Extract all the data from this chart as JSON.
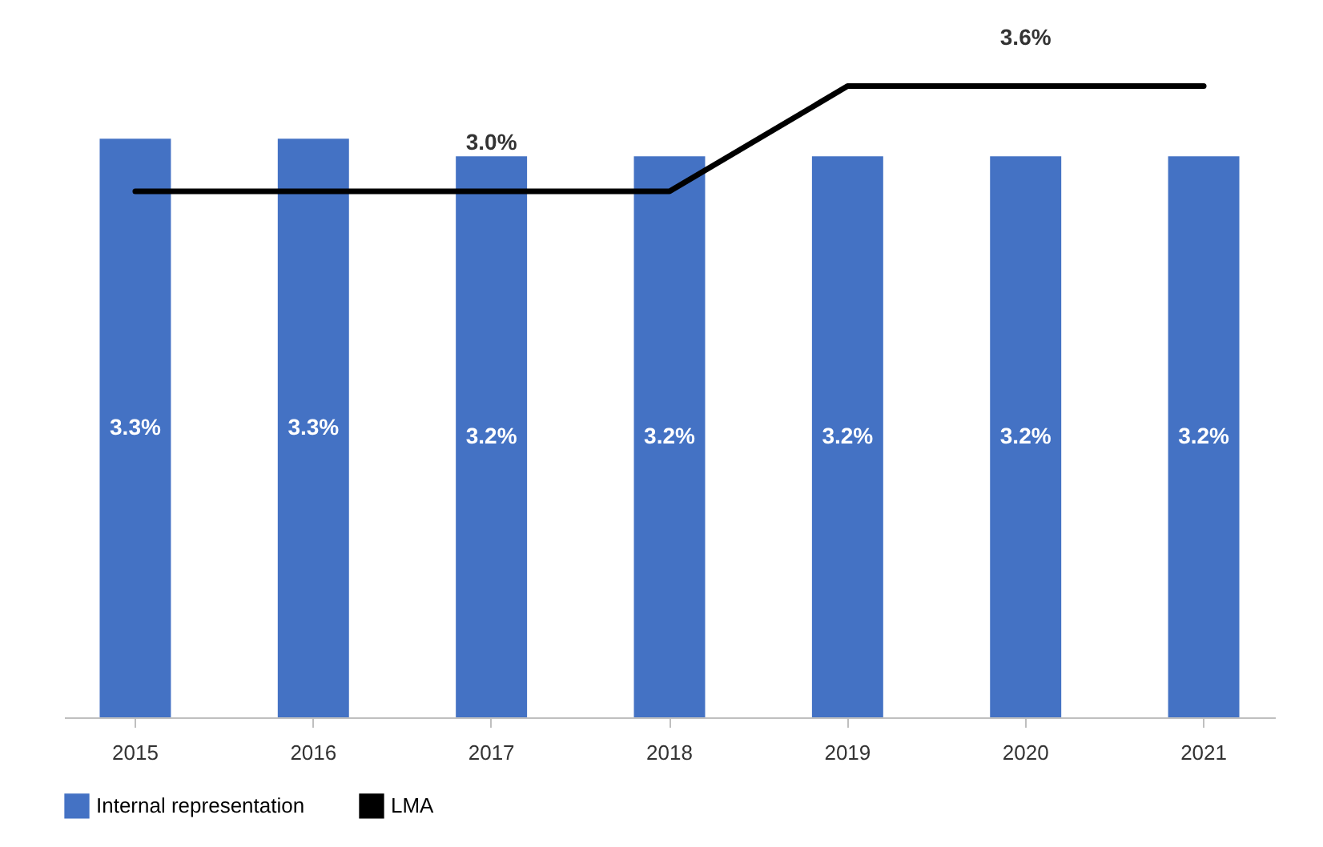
{
  "chart_data": {
    "type": "bar",
    "categories": [
      "2015",
      "2016",
      "2017",
      "2018",
      "2019",
      "2020",
      "2021"
    ],
    "legend": "bottom",
    "grid": false,
    "series": [
      {
        "name": "Internal representation",
        "color": "#4472c4",
        "values": [
          3.3,
          3.3,
          3.2,
          3.2,
          3.2,
          3.2,
          3.2
        ],
        "value_labels": [
          "3.3%",
          "3.3%",
          "3.2%",
          "3.2%",
          "3.2%",
          "3.2%",
          "3.2%"
        ]
      },
      {
        "name": "LMA",
        "type": "line",
        "color": "#000000",
        "values": [
          3.0,
          3.0,
          3.0,
          3.0,
          3.6,
          3.6,
          3.6
        ],
        "value_labels": [
          null,
          null,
          "3.0%",
          null,
          null,
          "3.6%",
          null
        ]
      }
    ]
  }
}
